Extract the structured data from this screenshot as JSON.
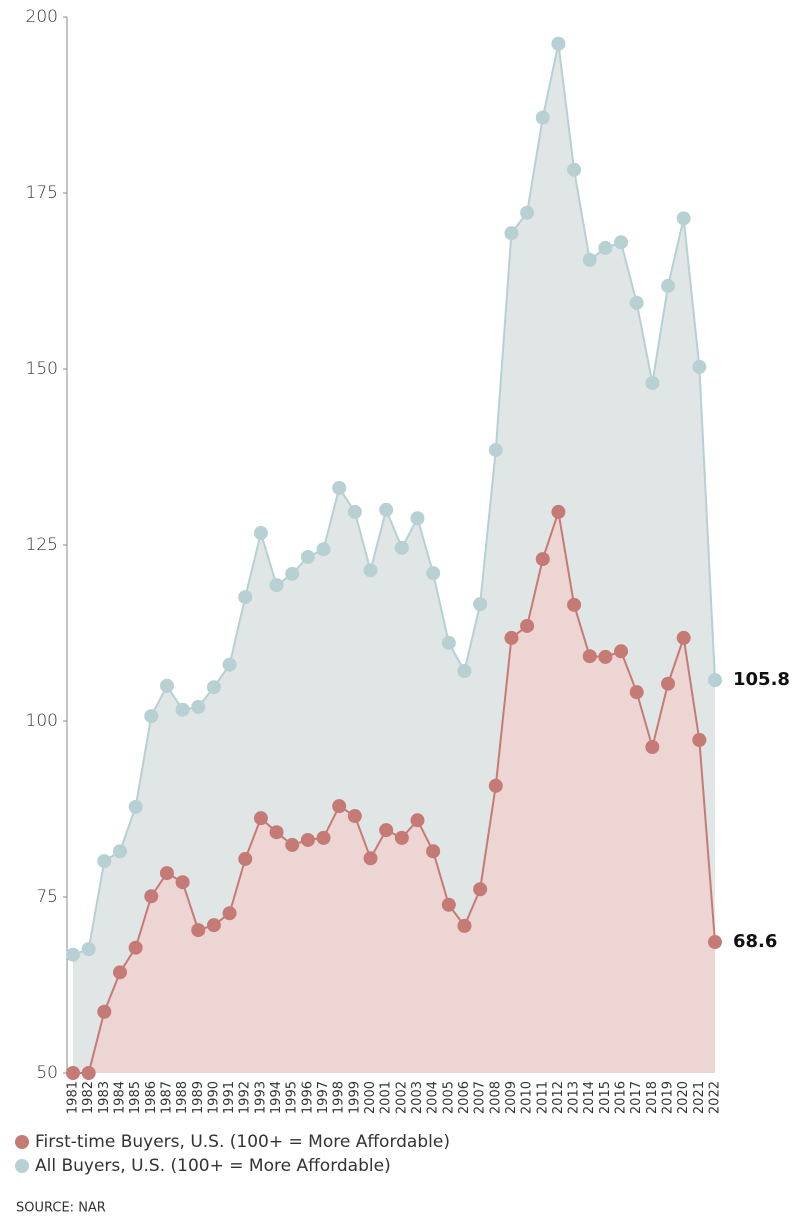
{
  "chart_data": {
    "type": "area-line",
    "categories": [
      "1981",
      "1982",
      "1983",
      "1984",
      "1985",
      "1986",
      "1987",
      "1988",
      "1989",
      "1990",
      "1991",
      "1992",
      "1993",
      "1994",
      "1995",
      "1996",
      "1997",
      "1998",
      "1999",
      "2000",
      "2001",
      "2002",
      "2003",
      "2004",
      "2005",
      "2006",
      "2007",
      "2008",
      "2009",
      "2010",
      "2011",
      "2012",
      "2013",
      "2014",
      "2015",
      "2016",
      "2017",
      "2018",
      "2019",
      "2020",
      "2021",
      "2022"
    ],
    "series": [
      {
        "name": "All Buyers, U.S. (100+ = More Affordable)",
        "color": "#b7d0d3",
        "fill": "#dfe6e5",
        "values": [
          66.8,
          67.6,
          80.1,
          81.5,
          87.8,
          100.7,
          105.0,
          101.6,
          102.0,
          104.8,
          108.0,
          117.6,
          126.7,
          119.3,
          120.9,
          123.3,
          124.4,
          133.1,
          129.7,
          121.4,
          130.0,
          124.6,
          128.8,
          121.0,
          111.1,
          107.1,
          116.6,
          138.5,
          169.3,
          172.2,
          185.7,
          196.2,
          178.3,
          165.5,
          167.2,
          168.0,
          159.4,
          148.0,
          161.8,
          171.4,
          150.3,
          105.8
        ]
      },
      {
        "name": "First-time Buyers, U.S. (100+ = More Affordable)",
        "color": "#c67a75",
        "fill": "#ecd5d2",
        "values": [
          50,
          50,
          58.7,
          64.3,
          67.8,
          75.1,
          78.4,
          77.1,
          70.3,
          71.0,
          72.7,
          80.4,
          86.2,
          84.2,
          82.4,
          83.1,
          83.4,
          87.9,
          86.5,
          80.5,
          84.5,
          83.4,
          85.9,
          81.5,
          73.9,
          70.9,
          76.1,
          90.8,
          111.8,
          113.5,
          123.0,
          129.7,
          116.5,
          109.2,
          109.1,
          109.9,
          104.1,
          96.3,
          105.3,
          111.8,
          97.3,
          68.6
        ]
      }
    ],
    "ylim": [
      50,
      200
    ],
    "yticks": [
      50,
      75,
      100,
      125,
      150,
      175,
      200
    ],
    "legend_order": [
      1,
      0
    ],
    "source": "SOURCE: NAR"
  }
}
